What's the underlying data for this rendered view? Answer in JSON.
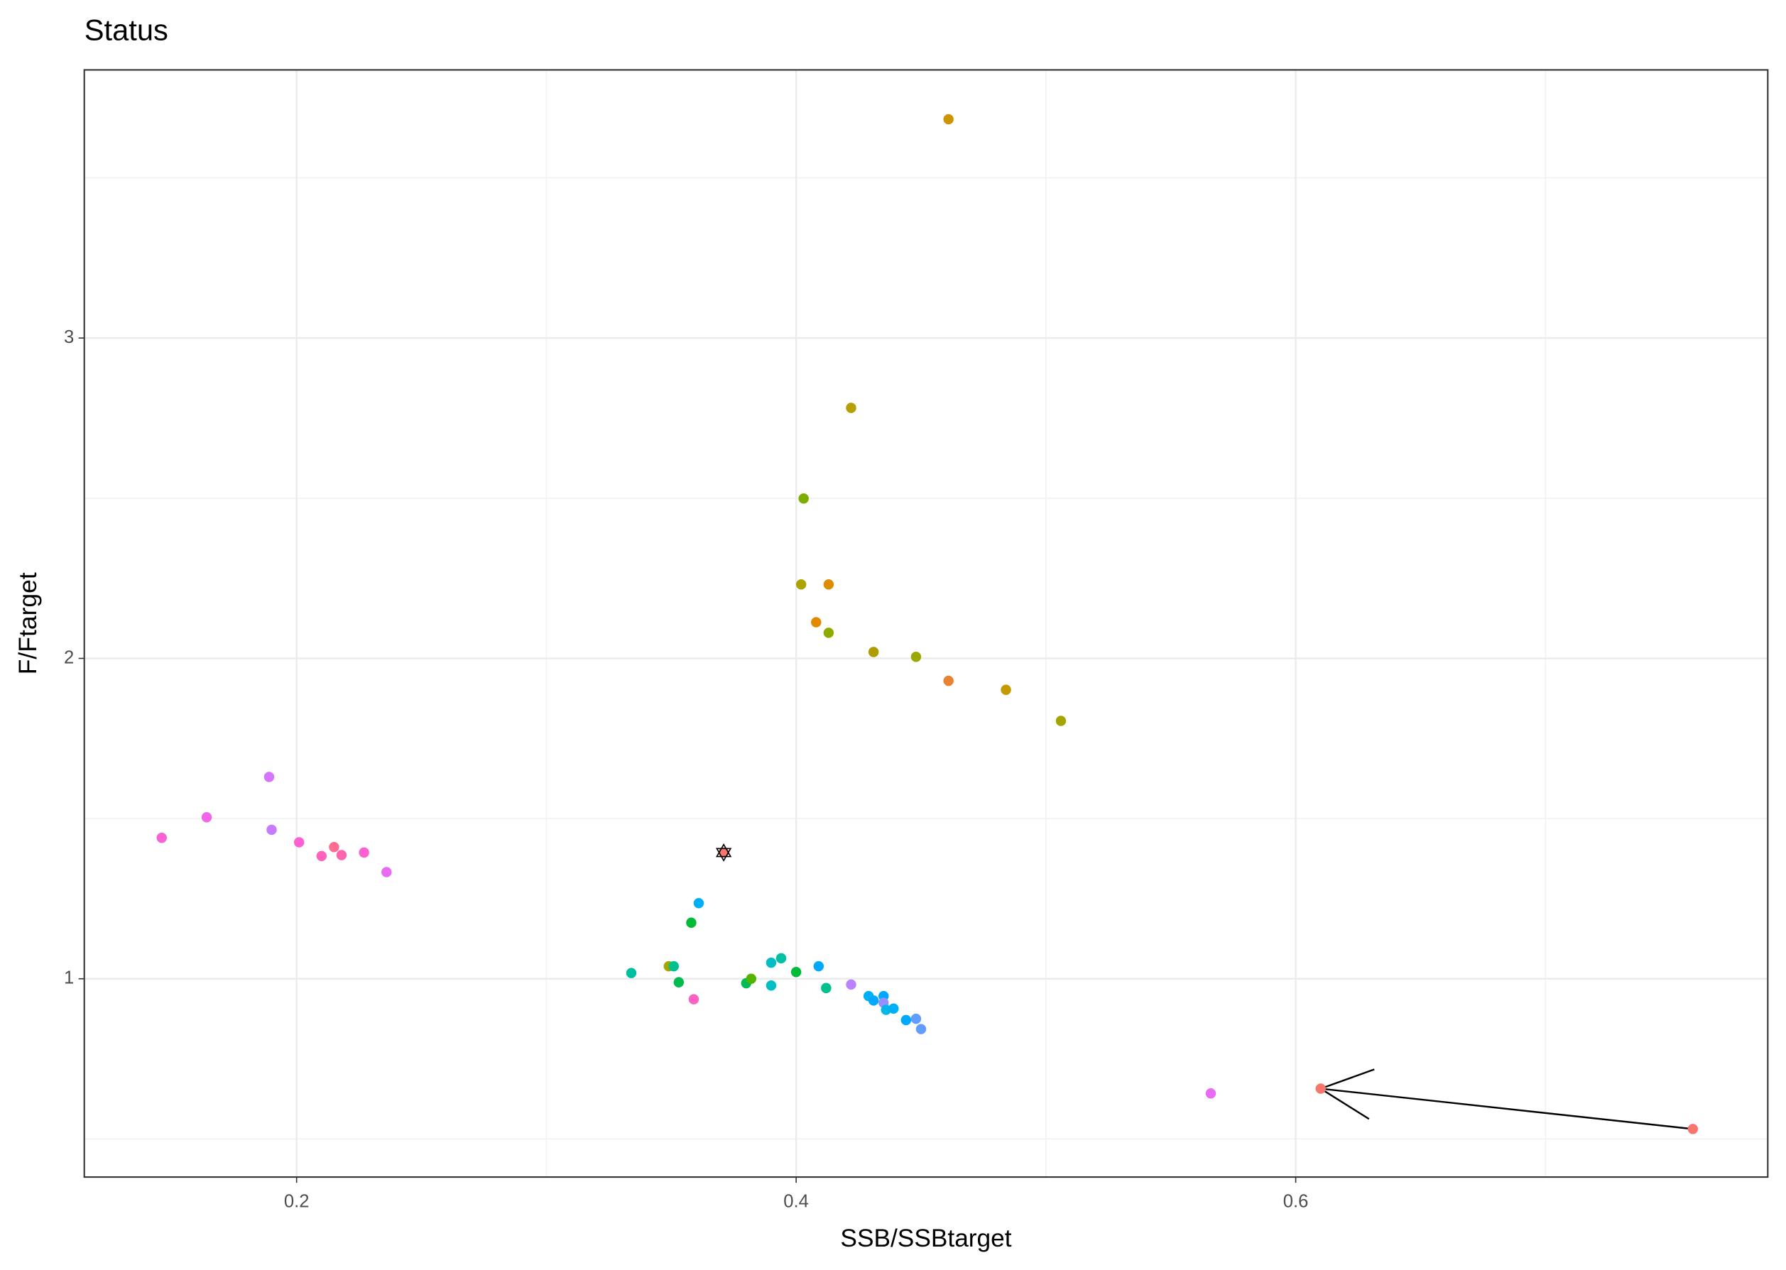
{
  "chart_data": {
    "type": "scatter",
    "title": "Status",
    "x_label": "SSB/SSBtarget",
    "y_label": "F/Ftarget",
    "xlim": [
      0.115,
      0.789
    ],
    "ylim": [
      0.381,
      3.837
    ],
    "xticks": [
      0.2,
      0.4,
      0.6
    ],
    "yticks": [
      1,
      2,
      3
    ],
    "grid": true,
    "x": [
      0.461,
      0.422,
      0.403,
      0.402,
      0.413,
      0.408,
      0.413,
      0.431,
      0.448,
      0.461,
      0.484,
      0.506,
      0.189,
      0.164,
      0.19,
      0.146,
      0.201,
      0.215,
      0.21,
      0.218,
      0.227,
      0.236,
      0.371,
      0.361,
      0.358,
      0.334,
      0.349,
      0.351,
      0.353,
      0.359,
      0.38,
      0.382,
      0.39,
      0.394,
      0.39,
      0.4,
      0.409,
      0.412,
      0.422,
      0.429,
      0.431,
      0.435,
      0.435,
      0.436,
      0.439,
      0.444,
      0.448,
      0.45,
      0.566,
      0.61,
      0.759
    ],
    "values": [
      3.683,
      2.782,
      2.499,
      2.231,
      2.231,
      2.113,
      2.08,
      2.02,
      2.005,
      1.93,
      1.902,
      1.805,
      1.63,
      1.504,
      1.465,
      1.44,
      1.426,
      1.411,
      1.383,
      1.386,
      1.394,
      1.333,
      1.394,
      1.236,
      1.175,
      1.018,
      1.039,
      1.039,
      0.989,
      0.936,
      0.986,
      1.0,
      1.05,
      1.064,
      0.979,
      1.021,
      1.039,
      0.971,
      0.982,
      0.946,
      0.932,
      0.946,
      0.925,
      0.903,
      0.907,
      0.871,
      0.875,
      0.843,
      0.642,
      0.657,
      0.531
    ],
    "colors": [
      "#cd9600",
      "#b79f00",
      "#7cae00",
      "#aba300",
      "#de8c00",
      "#e18a00",
      "#8cab00",
      "#b09c00",
      "#9aa800",
      "#ea8331",
      "#c49a00",
      "#a3a500",
      "#d575fe",
      "#f166e8",
      "#c77cff",
      "#fb61d7",
      "#fd61d1",
      "#ff6c91",
      "#ff62bc",
      "#ff65ae",
      "#fd61d1",
      "#e76bf3",
      "#f8766d",
      "#00b0f6",
      "#00ba38",
      "#00bfa0",
      "#a3a500",
      "#00c08b",
      "#00bb4e",
      "#ff61c3",
      "#00bc56",
      "#53b400",
      "#00bfc4",
      "#00c1a3",
      "#00bfc4",
      "#00ba38",
      "#00a9ff",
      "#00c08b",
      "#b983ff",
      "#00b0f6",
      "#00a9ff",
      "#00a9ff",
      "#9590ff",
      "#00b8e7",
      "#00b0f6",
      "#00a9ff",
      "#619cff",
      "#619cff",
      "#e76bf3",
      "#f8766d",
      "#f8766d"
    ]
  }
}
